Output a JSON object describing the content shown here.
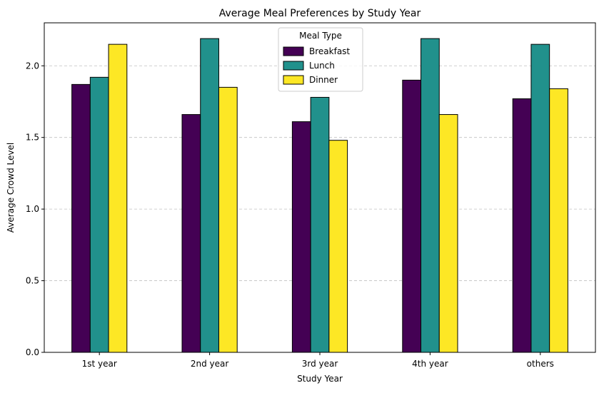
{
  "chart_data": {
    "type": "bar",
    "title": "Average Meal Preferences by Study Year",
    "xlabel": "Study Year",
    "ylabel": "Average Crowd Level",
    "categories": [
      "1st year",
      "2nd year",
      "3rd year",
      "4th year",
      "others"
    ],
    "series": [
      {
        "name": "Breakfast",
        "color": "#440154",
        "values": [
          1.87,
          1.66,
          1.61,
          1.9,
          1.77
        ]
      },
      {
        "name": "Lunch",
        "color": "#21918c",
        "values": [
          1.92,
          2.19,
          1.78,
          2.19,
          2.15
        ]
      },
      {
        "name": "Dinner",
        "color": "#fde725",
        "values": [
          2.15,
          1.85,
          1.48,
          1.66,
          1.84
        ]
      }
    ],
    "ylim": [
      0,
      2.3
    ],
    "yticks": [
      0.0,
      0.5,
      1.0,
      1.5,
      2.0
    ],
    "ytick_labels": [
      "0.0",
      "0.5",
      "1.0",
      "1.5",
      "2.0"
    ],
    "grid": "y-dashed",
    "legend": {
      "title": "Meal Type",
      "placement": "top-center"
    },
    "bar_edge_color": "#000000"
  }
}
